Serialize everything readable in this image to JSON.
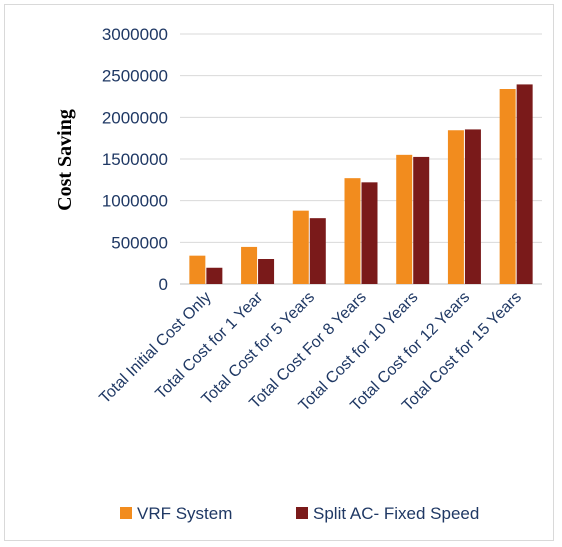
{
  "chart_data": {
    "type": "bar",
    "title": "",
    "xlabel": "",
    "ylabel": "Cost Saving",
    "ylim": [
      0,
      3000000
    ],
    "yticks": [
      0,
      500000,
      1000000,
      1500000,
      2000000,
      2500000,
      3000000
    ],
    "grid": true,
    "legend_position": "bottom",
    "categories": [
      "Total Initial Cost Only",
      "Total Cost for 1 Year",
      "Total Cost for 5 Years",
      "Total Cost For 8 Years",
      "Total Cost for 10 Years",
      "Total Cost for 12 Years",
      "Total Cost for 15 Years"
    ],
    "series": [
      {
        "name": "VRF System",
        "color": "#f28c1e",
        "values": [
          340000,
          445000,
          880000,
          1270000,
          1550000,
          1845000,
          2340000
        ]
      },
      {
        "name": "Split AC- Fixed Speed",
        "color": "#7a1a1a",
        "values": [
          195000,
          300000,
          790000,
          1220000,
          1525000,
          1855000,
          2395000
        ]
      }
    ]
  }
}
